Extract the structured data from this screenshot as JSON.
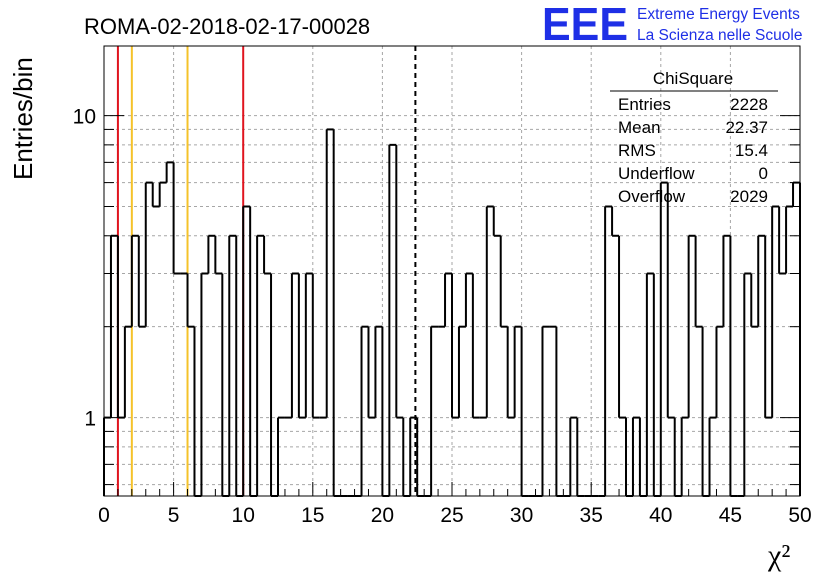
{
  "colors": {
    "histogram": "#000000",
    "grid": "#a6a6a6",
    "red_line": "#e0141e",
    "yellow_line": "#f5c22a",
    "logo_blue": "#1e2fe6"
  },
  "logo": {
    "mark": "EEE",
    "line1": "Extreme Energy Events",
    "line2": "La Scienza nelle Scuole"
  },
  "stats_box": {
    "title": "ChiSquare",
    "rows": [
      {
        "label": "Entries",
        "value": "2228"
      },
      {
        "label": "Mean",
        "value": "22.37"
      },
      {
        "label": "RMS",
        "value": "15.4"
      },
      {
        "label": "Underflow",
        "value": "0"
      },
      {
        "label": "Overflow",
        "value": "2029"
      }
    ]
  },
  "chart_data": {
    "type": "bar",
    "title": "ROMA-02-2018-02-17-00028",
    "xlabel": "χ²",
    "ylabel": "Entries/bin",
    "xlim": [
      0,
      50
    ],
    "ylim": [
      0.55,
      17
    ],
    "y_log": true,
    "grid": true,
    "bin_width": 0.5,
    "x_ticks": [
      0,
      5,
      10,
      15,
      20,
      25,
      30,
      35,
      40,
      45,
      50
    ],
    "x_tick_labels": [
      "0",
      "5",
      "10",
      "15",
      "20",
      "25",
      "30",
      "35",
      "40",
      "45",
      "50"
    ],
    "y_ticks": [
      1,
      10
    ],
    "y_tick_labels": [
      "1",
      "10"
    ],
    "values": [
      1,
      4,
      1,
      2,
      4,
      2,
      6,
      5,
      6,
      7,
      3,
      3,
      2,
      0,
      3,
      4,
      3,
      0,
      4,
      0,
      5,
      0,
      4,
      3,
      0,
      1,
      1,
      3,
      1,
      3,
      1,
      1,
      9,
      0,
      0,
      0,
      0,
      2,
      1,
      2,
      0,
      8,
      1,
      0,
      1,
      0,
      0,
      2,
      2,
      3,
      1,
      2,
      3,
      1,
      1,
      5,
      4,
      2,
      1,
      2,
      0,
      0,
      0,
      2,
      2,
      0,
      0,
      1,
      0,
      0,
      0,
      0,
      5,
      4,
      1,
      0,
      1,
      0,
      3,
      0,
      6,
      1,
      0,
      1,
      4,
      2,
      0,
      1,
      2,
      4,
      0,
      0,
      3,
      2,
      4,
      1,
      5,
      3,
      5,
      6
    ],
    "lines": [
      {
        "x": 1,
        "color": "red",
        "style": "solid"
      },
      {
        "x": 2,
        "color": "yellow",
        "style": "solid"
      },
      {
        "x": 6,
        "color": "yellow",
        "style": "solid"
      },
      {
        "x": 10,
        "color": "red",
        "style": "solid"
      },
      {
        "x": 22.37,
        "color": "black",
        "style": "dashed"
      }
    ]
  }
}
